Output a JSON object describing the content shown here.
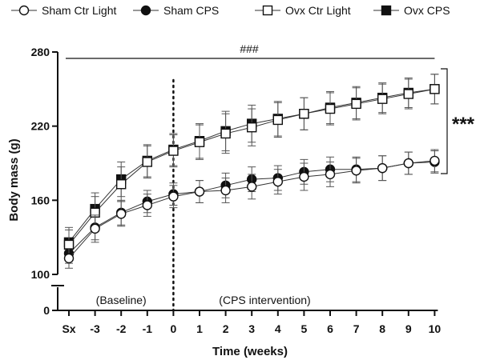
{
  "chart_data": {
    "type": "line",
    "title": "",
    "xlabel": "Time (weeks)",
    "ylabel": "Body mass (g)",
    "categories": [
      "Sx",
      "-3",
      "-2",
      "-1",
      "0",
      "1",
      "2",
      "3",
      "4",
      "5",
      "6",
      "7",
      "8",
      "9",
      "10"
    ],
    "y_ticks": [
      0,
      100,
      160,
      220,
      280
    ],
    "ylim": [
      100,
      280
    ],
    "y_axis_break": true,
    "series": [
      {
        "name": "Sham Ctr Light",
        "marker": "circle-open",
        "values": [
          113,
          137,
          149,
          156,
          163,
          167,
          168,
          171,
          175,
          179,
          181,
          184,
          186,
          190,
          192
        ],
        "errors": [
          8,
          11,
          10,
          9,
          9,
          9,
          10,
          10,
          10,
          11,
          10,
          10,
          10,
          9,
          9
        ]
      },
      {
        "name": "Sham CPS",
        "marker": "circle-filled",
        "values": [
          117,
          138,
          150,
          159,
          165,
          167,
          172,
          177,
          178,
          183,
          185,
          185,
          186,
          190,
          191
        ],
        "errors": [
          8,
          10,
          10,
          9,
          9,
          9,
          10,
          10,
          10,
          10,
          10,
          10,
          10,
          9,
          9
        ]
      },
      {
        "name": "Ovx Ctr Light",
        "marker": "square-open",
        "values": [
          124,
          150,
          173,
          191,
          200,
          207,
          214,
          219,
          225,
          230,
          234,
          238,
          242,
          246,
          250
        ],
        "errors": [
          12,
          13,
          14,
          13,
          13,
          14,
          16,
          15,
          14,
          13,
          13,
          13,
          12,
          12,
          12
        ]
      },
      {
        "name": "Ovx CPS",
        "marker": "square-filled",
        "values": [
          126,
          153,
          177,
          192,
          201,
          208,
          216,
          222,
          226,
          230,
          235,
          239,
          243,
          247,
          250
        ],
        "errors": [
          12,
          13,
          14,
          13,
          13,
          14,
          16,
          15,
          14,
          13,
          13,
          13,
          12,
          12,
          12
        ]
      }
    ],
    "annotations": {
      "overall_significance": "###",
      "endpoint_significance": "***",
      "baseline_label": "(Baseline)",
      "intervention_label": "(CPS intervention)"
    },
    "intervention_start_category": "0",
    "legend_position": "top"
  }
}
